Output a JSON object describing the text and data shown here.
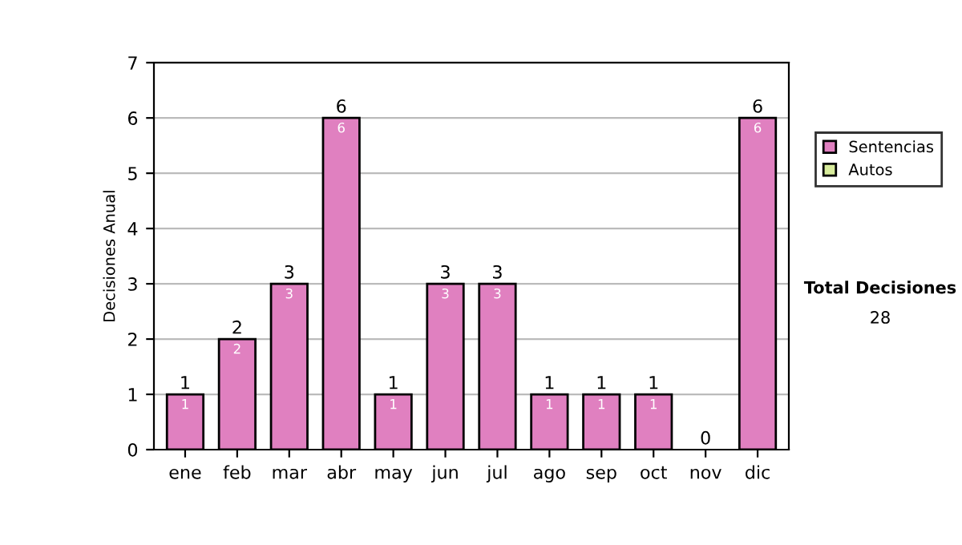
{
  "chart_data": {
    "type": "bar",
    "ylabel": "Decisiones Anual",
    "stacked": true,
    "categories": [
      "ene",
      "feb",
      "mar",
      "abr",
      "may",
      "jun",
      "jul",
      "ago",
      "sep",
      "oct",
      "nov",
      "dic"
    ],
    "series": [
      {
        "name": "Sentencias",
        "color": "#e080c0",
        "values": [
          1,
          2,
          3,
          6,
          1,
          3,
          3,
          1,
          1,
          1,
          0,
          6
        ],
        "value_labels": [
          "1",
          "2",
          "3",
          "6",
          "1",
          "3",
          "3",
          "1",
          "1",
          "1",
          null,
          "6"
        ]
      },
      {
        "name": "Autos",
        "color": "#d8ec9c",
        "values": [
          0,
          0,
          0,
          0,
          0,
          0,
          0,
          0,
          0,
          0,
          0,
          0
        ]
      }
    ],
    "totals": [
      "1",
      "2",
      "3",
      "6",
      "1",
      "3",
      "3",
      "1",
      "1",
      "1",
      "0",
      "6"
    ],
    "ylim": [
      0,
      7
    ],
    "yticks": [
      0,
      1,
      2,
      3,
      4,
      5,
      6,
      7
    ],
    "grid": "y",
    "legend": "right",
    "annotations": [
      "Total Decisiones",
      "28"
    ]
  }
}
